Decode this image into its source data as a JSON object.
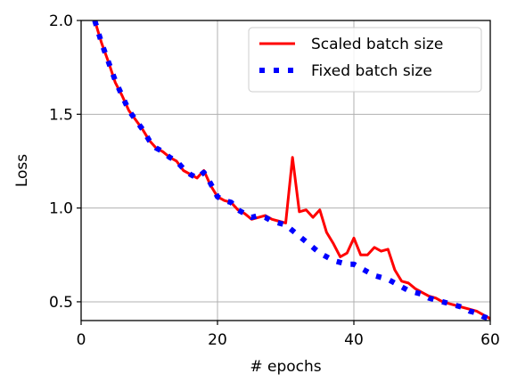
{
  "chart_data": {
    "type": "line",
    "xlabel": "# epochs",
    "ylabel": "Loss",
    "xlim": [
      0,
      60
    ],
    "ylim": [
      0.4,
      2.0
    ],
    "xticks": [
      0,
      20,
      40,
      60
    ],
    "yticks": [
      0.5,
      1.0,
      1.5,
      2.0
    ],
    "xtick_labels": [
      "0",
      "20",
      "40",
      "60"
    ],
    "ytick_labels": [
      "0.5",
      "1.0",
      "1.5",
      "2.0"
    ],
    "grid": true,
    "legend_position": "top-right",
    "series": [
      {
        "name": "Scaled batch size",
        "color": "#ff0000",
        "style": "solid",
        "x": [
          2,
          3,
          4,
          5,
          6,
          7,
          8,
          9,
          10,
          11,
          12,
          13,
          14,
          15,
          16,
          17,
          18,
          19,
          20,
          21,
          22,
          23,
          24,
          25,
          26,
          27,
          28,
          29,
          30,
          31,
          32,
          33,
          34,
          35,
          36,
          37,
          38,
          39,
          40,
          41,
          42,
          43,
          44,
          45,
          46,
          47,
          48,
          49,
          50,
          51,
          52,
          53,
          54,
          55,
          56,
          57,
          58,
          59,
          60
        ],
        "y": [
          2.0,
          1.88,
          1.78,
          1.67,
          1.6,
          1.52,
          1.47,
          1.42,
          1.36,
          1.32,
          1.3,
          1.27,
          1.25,
          1.2,
          1.18,
          1.16,
          1.2,
          1.12,
          1.06,
          1.04,
          1.03,
          0.99,
          0.97,
          0.94,
          0.95,
          0.96,
          0.94,
          0.93,
          0.92,
          1.27,
          0.98,
          0.99,
          0.95,
          0.99,
          0.87,
          0.81,
          0.74,
          0.76,
          0.84,
          0.75,
          0.75,
          0.79,
          0.77,
          0.78,
          0.67,
          0.61,
          0.6,
          0.57,
          0.55,
          0.53,
          0.52,
          0.5,
          0.49,
          0.48,
          0.47,
          0.46,
          0.45,
          0.43,
          0.41
        ]
      },
      {
        "name": "Fixed batch size",
        "color": "#0000ff",
        "style": "dotted",
        "x": [
          2,
          3,
          4,
          5,
          6,
          7,
          8,
          9,
          10,
          11,
          12,
          13,
          14,
          15,
          16,
          17,
          18,
          19,
          20,
          21,
          22,
          23,
          24,
          25,
          26,
          27,
          28,
          29,
          30,
          31,
          32,
          33,
          34,
          35,
          36,
          37,
          38,
          39,
          40,
          41,
          42,
          43,
          44,
          45,
          46,
          47,
          48,
          49,
          50,
          51,
          52,
          53,
          54,
          55,
          56,
          57,
          58,
          59,
          60
        ],
        "y": [
          2.0,
          1.88,
          1.78,
          1.68,
          1.6,
          1.52,
          1.47,
          1.42,
          1.36,
          1.32,
          1.3,
          1.27,
          1.25,
          1.21,
          1.18,
          1.16,
          1.19,
          1.13,
          1.06,
          1.04,
          1.03,
          0.99,
          0.97,
          0.95,
          0.96,
          0.95,
          0.93,
          0.92,
          0.91,
          0.88,
          0.85,
          0.82,
          0.79,
          0.76,
          0.74,
          0.72,
          0.71,
          0.7,
          0.7,
          0.68,
          0.66,
          0.64,
          0.63,
          0.62,
          0.6,
          0.58,
          0.56,
          0.55,
          0.54,
          0.52,
          0.51,
          0.5,
          0.49,
          0.48,
          0.47,
          0.45,
          0.44,
          0.42,
          0.41
        ]
      }
    ]
  }
}
